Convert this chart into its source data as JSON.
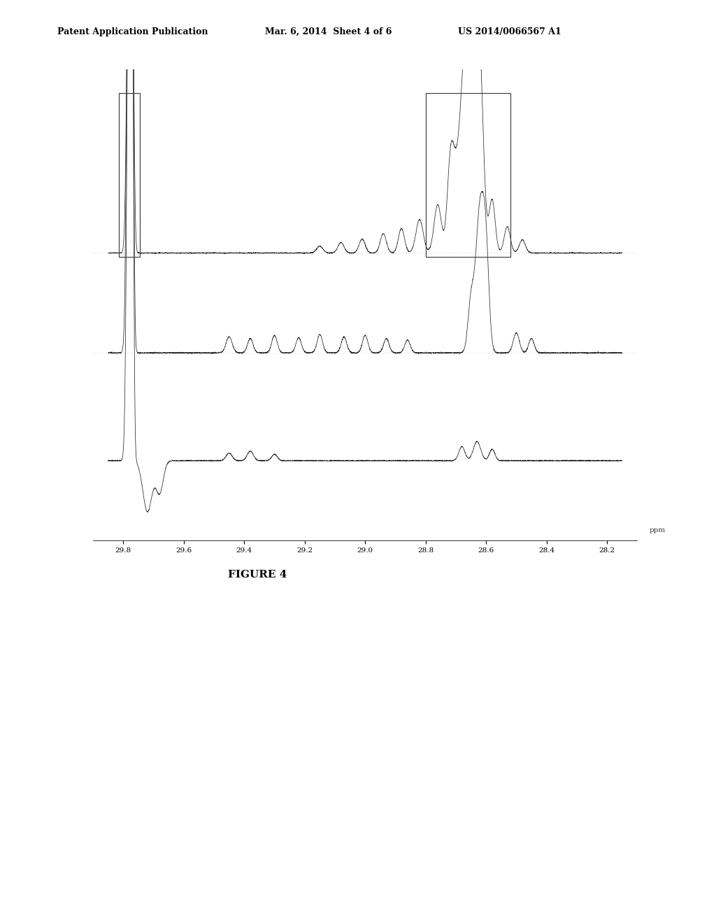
{
  "title_left": "Patent Application Publication",
  "title_mid": "Mar. 6, 2014  Sheet 4 of 6",
  "title_right": "US 2014/0066567 A1",
  "figure_label": "FIGURE 4",
  "background_color": "#ffffff",
  "xmin": 28.15,
  "xmax": 29.85,
  "xlabel": "ppm",
  "x_ticks": [
    29.8,
    29.6,
    29.4,
    29.2,
    29.0,
    28.8,
    28.6,
    28.4,
    28.2
  ],
  "x_tick_labels": [
    "29.8",
    "29.6",
    "29.4",
    "29.2",
    "29.0",
    "28.8",
    "28.6",
    "28.4",
    "28.2"
  ],
  "line_color": "#2a2a2a",
  "box_color": "#444444",
  "header_fontsize": 9,
  "tick_fontsize": 7.5,
  "figure_label_fontsize": 11
}
